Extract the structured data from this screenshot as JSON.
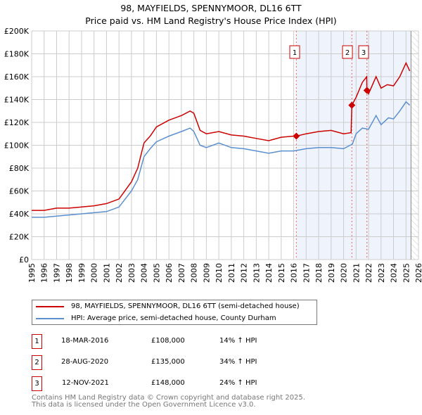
{
  "chart_data": {
    "type": "line",
    "title": "98, MAYFIELDS, SPENNYMOOR, DL16 6TT",
    "subtitle": "Price paid vs. HM Land Registry's House Price Index (HPI)",
    "xlim": [
      1995,
      2026
    ],
    "ylim": [
      0,
      200000
    ],
    "x_ticks": [
      "1995",
      "1996",
      "1997",
      "1998",
      "1999",
      "2000",
      "2001",
      "2002",
      "2003",
      "2004",
      "2005",
      "2006",
      "2007",
      "2008",
      "2009",
      "2010",
      "2011",
      "2012",
      "2013",
      "2014",
      "2015",
      "2016",
      "2017",
      "2018",
      "2019",
      "2020",
      "2021",
      "2022",
      "2023",
      "2024",
      "2025",
      "2026"
    ],
    "y_ticks": [
      {
        "v": 0,
        "l": "£0"
      },
      {
        "v": 20000,
        "l": "£20K"
      },
      {
        "v": 40000,
        "l": "£40K"
      },
      {
        "v": 60000,
        "l": "£60K"
      },
      {
        "v": 80000,
        "l": "£80K"
      },
      {
        "v": 100000,
        "l": "£100K"
      },
      {
        "v": 120000,
        "l": "£120K"
      },
      {
        "v": 140000,
        "l": "£140K"
      },
      {
        "v": 160000,
        "l": "£160K"
      },
      {
        "v": 180000,
        "l": "£180K"
      },
      {
        "v": 200000,
        "l": "£200K"
      }
    ],
    "grid": true,
    "shaded_from": 2016.21,
    "hatched_from": 2025.4,
    "series": [
      {
        "name": "98, MAYFIELDS, SPENNYMOOR, DL16 6TT (semi-detached house)",
        "color": "#cc0000",
        "x": [
          1995,
          1996,
          1997,
          1998,
          1999,
          2000,
          2001,
          2002,
          2003,
          2003.5,
          2004,
          2004.5,
          2005,
          2006,
          2007,
          2007.7,
          2008,
          2008.5,
          2009,
          2010,
          2011,
          2012,
          2013,
          2014,
          2015,
          2016,
          2016.21,
          2017,
          2018,
          2019,
          2020,
          2020.6,
          2020.66,
          2021,
          2021.5,
          2021.85,
          2021.87,
          2022,
          2022.6,
          2023,
          2023.5,
          2024,
          2024.5,
          2025,
          2025.3
        ],
        "y": [
          43,
          43,
          45,
          45,
          46,
          47,
          49,
          53,
          68,
          80,
          102,
          108,
          116,
          122,
          126,
          130,
          128,
          113,
          110,
          112,
          109,
          108,
          106,
          104,
          107,
          108,
          108,
          110,
          112,
          113,
          110,
          111,
          135,
          142,
          155,
          160,
          148,
          145,
          160,
          150,
          153,
          152,
          160,
          172,
          165
        ]
      },
      {
        "name": "HPI: Average price, semi-detached house, County Durham",
        "color": "#5b8fd0",
        "x": [
          1995,
          1996,
          1997,
          1998,
          1999,
          2000,
          2001,
          2002,
          2003,
          2003.5,
          2004,
          2004.5,
          2005,
          2006,
          2007,
          2007.7,
          2008,
          2008.5,
          2009,
          2010,
          2011,
          2012,
          2013,
          2014,
          2015,
          2016,
          2017,
          2018,
          2019,
          2020,
          2020.7,
          2021,
          2021.5,
          2022,
          2022.6,
          2023,
          2023.6,
          2024,
          2024.5,
          2025,
          2025.3
        ],
        "y": [
          37,
          37,
          38,
          39,
          40,
          41,
          42,
          46,
          60,
          70,
          90,
          97,
          103,
          108,
          112,
          115,
          112,
          100,
          98,
          102,
          98,
          97,
          95,
          93,
          95,
          95,
          97,
          98,
          98,
          97,
          101,
          110,
          115,
          114,
          126,
          118,
          124,
          123,
          130,
          138,
          135
        ]
      }
    ],
    "sales": [
      {
        "n": "1",
        "x": 2016.21,
        "y": 108000,
        "date": "18-MAR-2016",
        "price": "£108,000",
        "hpi": "14% ↑ HPI"
      },
      {
        "n": "2",
        "x": 2020.66,
        "y": 135000,
        "date": "28-AUG-2020",
        "price": "£135,000",
        "hpi": "34% ↑ HPI"
      },
      {
        "n": "3",
        "x": 2021.87,
        "y": 148000,
        "date": "12-NOV-2021",
        "price": "£148,000",
        "hpi": "24% ↑ HPI"
      }
    ]
  },
  "footer": {
    "line1": "Contains HM Land Registry data © Crown copyright and database right 2025.",
    "line2": "This data is licensed under the Open Government Licence v3.0."
  }
}
